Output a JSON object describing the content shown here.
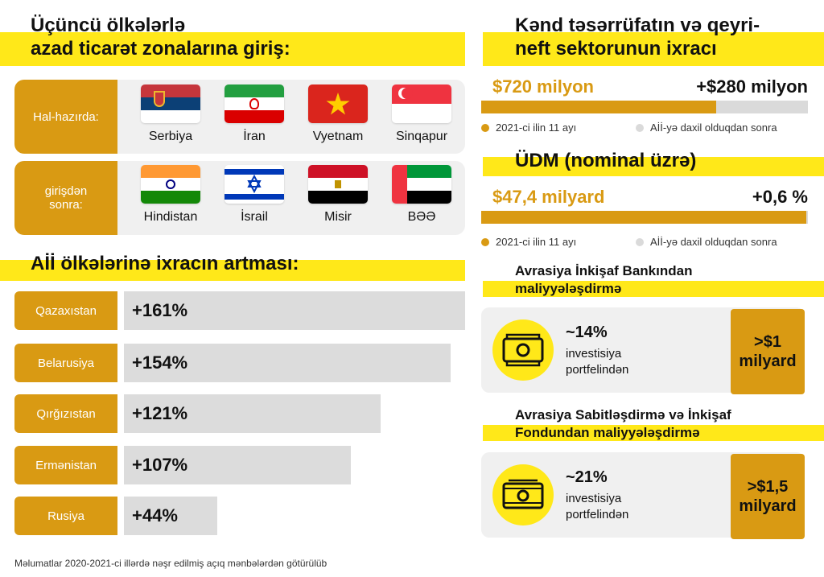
{
  "fta": {
    "title_line1": "Üçüncü ölkələrlə",
    "title_line2": "azad ticarət zonalarına giriş:",
    "current_label": "Hal-hazırda:",
    "after_label_line1": "girişdən",
    "after_label_line2": "sonra:",
    "current": [
      {
        "name": "Serbiya",
        "flag": "serbia-flag"
      },
      {
        "name": "İran",
        "flag": "iran-flag"
      },
      {
        "name": "Vyetnam",
        "flag": "vietnam-flag"
      },
      {
        "name": "Sinqapur",
        "flag": "singapore-flag"
      }
    ],
    "after": [
      {
        "name": "Hindistan",
        "flag": "india-flag"
      },
      {
        "name": "İsrail",
        "flag": "israel-flag"
      },
      {
        "name": "Misir",
        "flag": "egypt-flag"
      },
      {
        "name": "BƏƏ",
        "flag": "uae-flag"
      }
    ]
  },
  "exports": {
    "title": "Aİİ ölkələrinə ixracın artması:",
    "rows": [
      {
        "country": "Qazaxıstan",
        "label": "+161%",
        "value": 161
      },
      {
        "country": "Belarusiya",
        "label": "+154%",
        "value": 154
      },
      {
        "country": "Qırğızıstan",
        "label": "+121%",
        "value": 121
      },
      {
        "country": "Ermənistan",
        "label": "+107%",
        "value": 107
      },
      {
        "country": "Rusiya",
        "label": "+44%",
        "value": 44
      }
    ]
  },
  "agri": {
    "title_line1": "Kənd təsərrüfatın və qeyri-",
    "title_line2": "neft sektorunun ixracı",
    "left_value": "$720 milyon",
    "right_value": "+$280 milyon",
    "fill_fraction": 0.72,
    "legend_left": "2021-ci ilin 11 ayı",
    "legend_right": "Aİİ-yə daxil olduqdan sonra"
  },
  "gdp": {
    "title": "ÜDM (nominal üzrə)",
    "left_value": "$47,4 milyard",
    "right_value": "+0,6 %",
    "fill_fraction": 0.994,
    "legend_left": "2021-ci ilin 11 ayı",
    "legend_right": "Aİİ-yə daxil olduqdan sonra"
  },
  "eadb": {
    "title_line1": "Avrasiya İnkişaf Bankından",
    "title_line2": "maliyyələşdirmə",
    "pct": "~14%",
    "desc_line1": "investisiya",
    "desc_line2": "portfelindən",
    "amount_line1": ">$1",
    "amount_line2": "milyard"
  },
  "efsd": {
    "title_line1": "Avrasiya Sabitləşdirmə və İnkişaf",
    "title_line2": "Fondundan maliyyələşdirmə",
    "pct": "~21%",
    "desc_line1": "investisiya",
    "desc_line2": "portfelindən",
    "amount_line1": ">$1,5",
    "amount_line2": "milyard"
  },
  "colors": {
    "accent": "#d99a13",
    "yellow": "#ffe819",
    "panel": "#f0f0f0",
    "bar_grey": "#dcdcdc"
  },
  "footer": "Məlumatlar 2020-2021-ci illərdə nəşr edilmiş açıq mənbələrdən götürülüb"
}
